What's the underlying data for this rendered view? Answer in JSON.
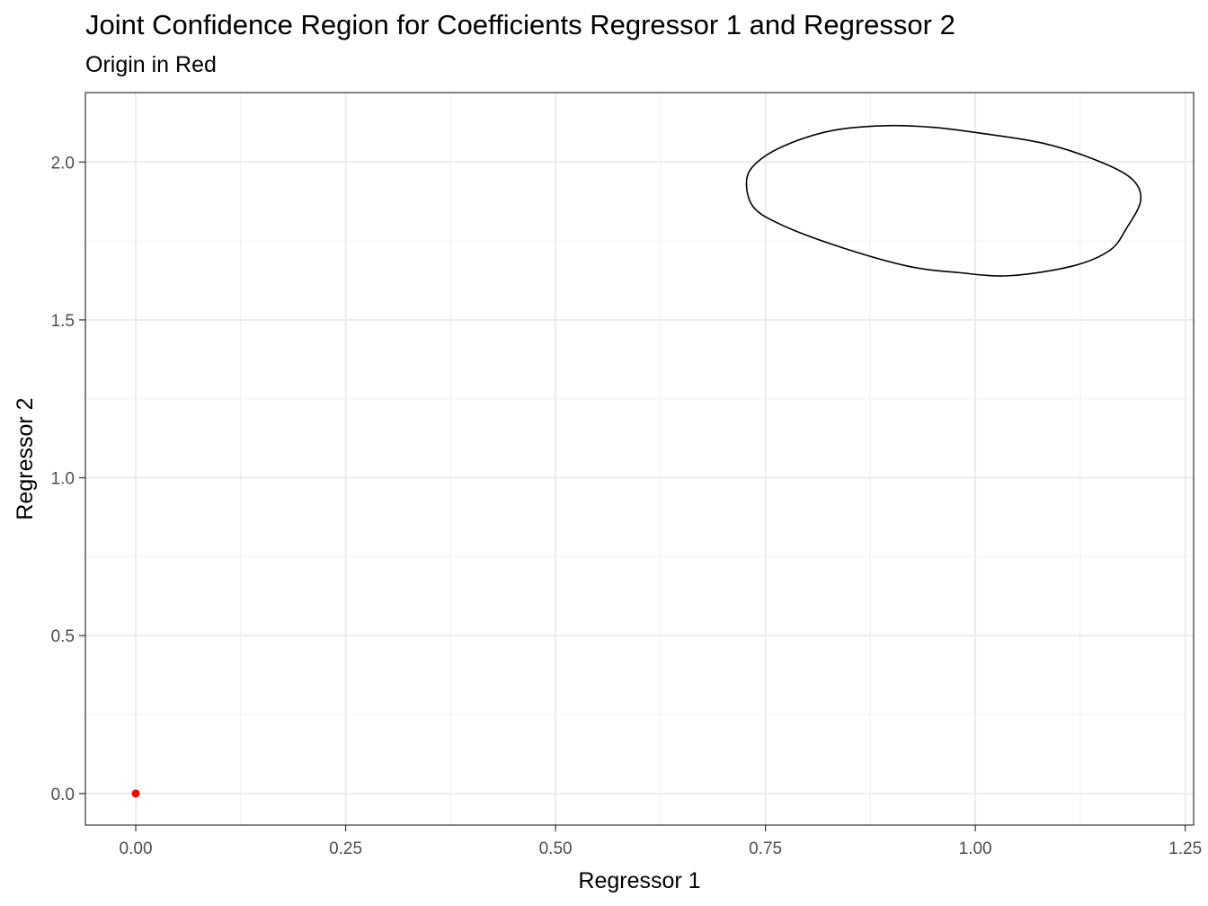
{
  "chart_data": {
    "type": "scatter",
    "title": "Joint Confidence Region for Coefficients Regressor 1 and Regressor 2",
    "subtitle": "Origin in Red",
    "xlabel": "Regressor 1",
    "ylabel": "Regressor 2",
    "xlim": [
      -0.06,
      1.26
    ],
    "ylim": [
      -0.1,
      2.22
    ],
    "x_ticks": [
      0.0,
      0.25,
      0.5,
      0.75,
      1.0,
      1.25
    ],
    "x_tick_labels": [
      "0.00",
      "0.25",
      "0.50",
      "0.75",
      "1.00",
      "1.25"
    ],
    "y_ticks": [
      0.0,
      0.5,
      1.0,
      1.5,
      2.0
    ],
    "y_tick_labels": [
      "0.0",
      "0.5",
      "1.0",
      "1.5",
      "2.0"
    ],
    "grid": true,
    "points": [
      {
        "x": 0.0,
        "y": 0.0,
        "color": "#ff0000"
      }
    ],
    "ellipse": {
      "color": "#000000",
      "path": [
        [
          0.728,
          1.95
        ],
        [
          0.745,
          2.01
        ],
        [
          0.78,
          2.06
        ],
        [
          0.83,
          2.1
        ],
        [
          0.89,
          2.115
        ],
        [
          0.95,
          2.11
        ],
        [
          1.01,
          2.09
        ],
        [
          1.08,
          2.06
        ],
        [
          1.14,
          2.01
        ],
        [
          1.185,
          1.95
        ],
        [
          1.197,
          1.88
        ],
        [
          1.18,
          1.79
        ],
        [
          1.16,
          1.72
        ],
        [
          1.115,
          1.67
        ],
        [
          1.04,
          1.64
        ],
        [
          0.98,
          1.65
        ],
        [
          0.92,
          1.67
        ],
        [
          0.84,
          1.73
        ],
        [
          0.77,
          1.8
        ],
        [
          0.735,
          1.86
        ],
        [
          0.728,
          1.95
        ]
      ]
    }
  }
}
